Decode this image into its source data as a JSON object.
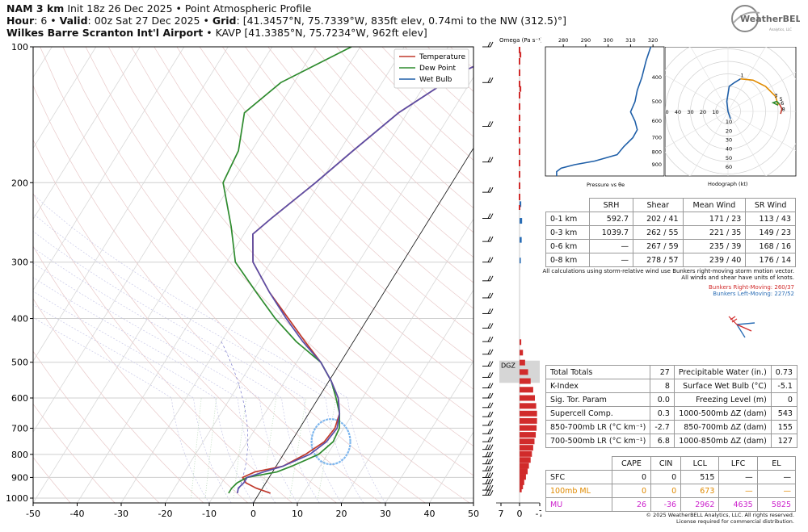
{
  "header": {
    "model": "NAM 3 km",
    "init": "Init 18z 26 Dec 2025",
    "product": "Point Atmospheric Profile",
    "hour_label": "Hour",
    "hour": "6",
    "valid_label": "Valid",
    "valid": "00z Sat 27 Dec 2025",
    "grid_label": "Grid",
    "grid": "[41.3457°N, 75.7339°W, 835ft elev, 0.74mi to the NW (312.5)°]",
    "station": "Wilkes Barre Scranton Int'l Airport",
    "station_info": "KAVP [41.3385°N, 75.7234°W, 962ft elev]"
  },
  "logo": {
    "text": "WeatherBELL",
    "subtext": "Analytics, LLC"
  },
  "colors": {
    "temperature": "#c0392b",
    "dewpoint": "#2e8b2e",
    "wetbulb": "#1f5fa8",
    "accent_red": "#d12b2b",
    "accent_blue": "#2a6db5",
    "ml": "#e08a00",
    "mu": "#cc22cc"
  },
  "chart_data": [
    {
      "type": "line",
      "name": "skew-t",
      "xlabel": "",
      "ylabel": "",
      "x_ticks": [
        -50,
        -40,
        -30,
        -20,
        -10,
        0,
        10,
        20,
        30,
        40,
        50
      ],
      "y_ticks": [
        100,
        200,
        300,
        400,
        500,
        600,
        700,
        800,
        900,
        1000
      ],
      "xlim": [
        -50,
        50
      ],
      "ylim": [
        1025,
        100
      ],
      "y_scale": "log",
      "legend": [
        "Temperature",
        "Dew Point",
        "Wet Bulb"
      ],
      "legend_position": "top-right",
      "series": [
        {
          "name": "Temperature",
          "points": [
            [
              2.5,
              975
            ],
            [
              -1.5,
              950
            ],
            [
              -4.5,
              925
            ],
            [
              -6,
              900
            ],
            [
              -4,
              875
            ],
            [
              1.5,
              850
            ],
            [
              5,
              800
            ],
            [
              7.5,
              750
            ],
            [
              8,
              700
            ],
            [
              7,
              650
            ],
            [
              4.5,
              600
            ],
            [
              0.5,
              550
            ],
            [
              -4.5,
              500
            ],
            [
              -11,
              450
            ],
            [
              -18,
              400
            ],
            [
              -26,
              350
            ],
            [
              -34,
              300
            ],
            [
              -38,
              260
            ],
            [
              -36,
              240
            ],
            [
              -31,
              200
            ],
            [
              -27,
              170
            ],
            [
              -22,
              140
            ],
            [
              -14,
              115
            ],
            [
              -5,
              100
            ]
          ]
        },
        {
          "name": "Dew Point",
          "points": [
            [
              -7,
              975
            ],
            [
              -7,
              950
            ],
            [
              -6.5,
              925
            ],
            [
              -5,
              900
            ],
            [
              1,
              875
            ],
            [
              3.5,
              850
            ],
            [
              8,
              800
            ],
            [
              9.5,
              750
            ],
            [
              9,
              700
            ],
            [
              7,
              650
            ],
            [
              4,
              600
            ],
            [
              0.5,
              550
            ],
            [
              -4.5,
              500
            ],
            [
              -13,
              450
            ],
            [
              -21,
              400
            ],
            [
              -29,
              350
            ],
            [
              -38,
              300
            ],
            [
              -44,
              250
            ],
            [
              -52,
              200
            ],
            [
              -53,
              170
            ],
            [
              -57,
              140
            ],
            [
              -53,
              120
            ],
            [
              -42,
              100
            ]
          ]
        },
        {
          "name": "Wet Bulb",
          "points": [
            [
              -5,
              975
            ],
            [
              -5.5,
              950
            ],
            [
              -5,
              925
            ],
            [
              -5,
              900
            ],
            [
              -2,
              875
            ],
            [
              1.5,
              850
            ],
            [
              6,
              800
            ],
            [
              8,
              750
            ],
            [
              8.5,
              700
            ],
            [
              7,
              650
            ],
            [
              4.5,
              600
            ],
            [
              0.5,
              550
            ],
            [
              -4.5,
              500
            ],
            [
              -11.5,
              450
            ],
            [
              -18.5,
              400
            ],
            [
              -26,
              350
            ],
            [
              -34,
              300
            ],
            [
              -38,
              260
            ],
            [
              -36,
              240
            ],
            [
              -31,
              200
            ],
            [
              -27,
              170
            ],
            [
              -22,
              140
            ],
            [
              -14,
              115
            ],
            [
              -5,
              100
            ]
          ]
        }
      ]
    },
    {
      "type": "bar",
      "name": "omega",
      "title": "Omega (Pa s⁻¹)",
      "x_ticks": [
        "7",
        "0",
        "-7"
      ],
      "xlim": [
        7,
        -7
      ],
      "dgz_label": "DGZ",
      "dgz_range": [
        500,
        560
      ],
      "values": [
        {
          "p": 965,
          "w": 0.5
        },
        {
          "p": 950,
          "w": 0.8
        },
        {
          "p": 930,
          "w": 1.1
        },
        {
          "p": 905,
          "w": 1.5
        },
        {
          "p": 880,
          "w": 1.9
        },
        {
          "p": 855,
          "w": 2.2
        },
        {
          "p": 830,
          "w": 2.6
        },
        {
          "p": 805,
          "w": 2.9
        },
        {
          "p": 780,
          "w": 3.2
        },
        {
          "p": 755,
          "w": 3.5
        },
        {
          "p": 730,
          "w": 3.8
        },
        {
          "p": 705,
          "w": 4.0
        },
        {
          "p": 680,
          "w": 4.1
        },
        {
          "p": 655,
          "w": 4.1
        },
        {
          "p": 630,
          "w": 3.9
        },
        {
          "p": 605,
          "w": 3.6
        },
        {
          "p": 580,
          "w": 3.2
        },
        {
          "p": 555,
          "w": 2.6
        },
        {
          "p": 530,
          "w": 2.0
        },
        {
          "p": 505,
          "w": 1.3
        },
        {
          "p": 480,
          "w": 0.8
        },
        {
          "p": 455,
          "w": 0.4
        },
        {
          "p": 300,
          "w": -0.3
        },
        {
          "p": 270,
          "w": -0.5
        },
        {
          "p": 245,
          "w": -0.6
        },
        {
          "p": 225,
          "w": -0.4
        },
        {
          "p": 125,
          "w": 0.4
        },
        {
          "p": 105,
          "w": 0.4
        }
      ]
    },
    {
      "type": "line",
      "name": "pressure-vs-theta-e",
      "xlabel": "Pressure vs θe",
      "x_ticks": [
        280,
        290,
        300,
        310,
        320
      ],
      "y_ticks": [
        400,
        500,
        600,
        700,
        800,
        900
      ],
      "xlim": [
        272,
        325
      ],
      "ylim": [
        1000,
        300
      ],
      "points": [
        [
          277,
          1000
        ],
        [
          277,
          960
        ],
        [
          279,
          930
        ],
        [
          285,
          900
        ],
        [
          294,
          870
        ],
        [
          304,
          820
        ],
        [
          307,
          760
        ],
        [
          311,
          700
        ],
        [
          313,
          650
        ],
        [
          312,
          600
        ],
        [
          310,
          550
        ],
        [
          312,
          500
        ],
        [
          313,
          450
        ],
        [
          315,
          400
        ],
        [
          317,
          340
        ],
        [
          319,
          300
        ]
      ]
    },
    {
      "type": "line",
      "name": "hodograph",
      "xlabel": "Hodograph (kt)",
      "rings": [
        10,
        20,
        30,
        40,
        50,
        60
      ],
      "left_ticks": [
        "60",
        "50",
        "40",
        "30",
        "20",
        "10"
      ],
      "down_ticks": [
        "10",
        "20",
        "30",
        "40",
        "50",
        "60"
      ],
      "segments": [
        {
          "color": "#1f5fa8",
          "points": [
            [
              2,
              -6
            ],
            [
              0,
              0
            ],
            [
              -1,
              8
            ],
            [
              1,
              20
            ],
            [
              5,
              23
            ],
            [
              10,
              26
            ]
          ]
        },
        {
          "color": "#e08a00",
          "points": [
            [
              10,
              26
            ],
            [
              20,
              25
            ],
            [
              30,
              20
            ],
            [
              38,
              12
            ],
            [
              40,
              5
            ]
          ]
        },
        {
          "color": "#2e8b2e",
          "points": [
            [
              40,
              5
            ],
            [
              36,
              7
            ],
            [
              39,
              8
            ],
            [
              41,
              6
            ]
          ]
        },
        {
          "color": "#c0392b",
          "points": [
            [
              41,
              6
            ],
            [
              43,
              2
            ],
            [
              42,
              -2
            ]
          ]
        }
      ],
      "labels": [
        {
          "text": "1",
          "u": 10,
          "v": 26
        },
        {
          "text": "3",
          "u": 37,
          "v": 10
        },
        {
          "text": "5",
          "u": 41,
          "v": 7
        },
        {
          "text": "6",
          "u": 42,
          "v": 4
        },
        {
          "text": "8",
          "u": 43,
          "v": -1
        }
      ]
    }
  ],
  "kinematics": {
    "headers": [
      "",
      "SRH",
      "Shear",
      "Mean Wind",
      "SR Wind"
    ],
    "rows": [
      [
        "0-1 km",
        "592.7",
        "202 / 41",
        "171 / 23",
        "113 / 43"
      ],
      [
        "0-3 km",
        "1039.7",
        "262 / 55",
        "221 / 35",
        "149 / 23"
      ],
      [
        "0-6 km",
        "—",
        "267 / 59",
        "235 / 39",
        "168 / 16"
      ],
      [
        "0-8 km",
        "—",
        "278 / 57",
        "239 / 40",
        "176 / 14"
      ]
    ],
    "note1": "All calculations using storm-relative wind use Bunkers right-moving storm motion vector.",
    "note2": "All winds and shear have units of knots.",
    "bunkers_rm": "Bunkers Right-Moving: 260/37",
    "bunkers_lm": "Bunkers Left-Moving: 227/52"
  },
  "indices_left": [
    [
      "Total Totals",
      "27"
    ],
    [
      "K-Index",
      "8"
    ],
    [
      "Sig. Tor. Param",
      "0.0"
    ],
    [
      "Supercell Comp.",
      "0.3"
    ],
    [
      "850-700mb LR (°C km⁻¹)",
      "-2.7"
    ],
    [
      "700-500mb LR (°C km⁻¹)",
      "6.8"
    ]
  ],
  "indices_right": [
    [
      "Precipitable Water (in.)",
      "0.73"
    ],
    [
      "Surface Wet Bulb (°C)",
      "-5.1"
    ],
    [
      "Freezing Level (m)",
      "0"
    ],
    [
      "1000-500mb ΔZ (dam)",
      "543"
    ],
    [
      "850-700mb ΔZ (dam)",
      "155"
    ],
    [
      "1000-850mb ΔZ (dam)",
      "127"
    ]
  ],
  "parcels": {
    "headers": [
      "",
      "CAPE",
      "CIN",
      "LCL",
      "LFC",
      "EL"
    ],
    "rows": [
      [
        "SFC",
        "0",
        "0",
        "515",
        "—",
        "—"
      ],
      [
        "100mb ML",
        "0",
        "0",
        "673",
        "—",
        "—"
      ],
      [
        "MU",
        "26",
        "-36",
        "2962",
        "4635",
        "5825"
      ]
    ]
  },
  "copyright": "© 2025 WeatherBELL Analytics, LLC. All rights reserved.",
  "license": "License required for commercial distribution."
}
